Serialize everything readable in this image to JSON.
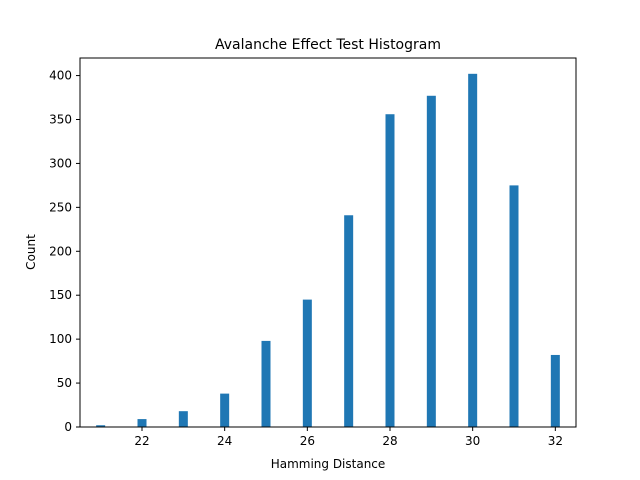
{
  "chart_data": {
    "type": "bar",
    "title": "Avalanche Effect Test Histogram",
    "xlabel": "Hamming Distance",
    "ylabel": "Count",
    "x": [
      21,
      22,
      23,
      24,
      25,
      26,
      27,
      28,
      29,
      30,
      31,
      32
    ],
    "values": [
      2,
      9,
      18,
      38,
      98,
      145,
      241,
      356,
      377,
      402,
      275,
      82
    ],
    "xlim": [
      20.5,
      32.5
    ],
    "ylim": [
      0,
      420
    ],
    "xticks": [
      22,
      24,
      26,
      28,
      30,
      32
    ],
    "xtick_labels": [
      "22",
      "24",
      "26",
      "28",
      "30",
      "32"
    ],
    "yticks": [
      0,
      50,
      100,
      150,
      200,
      250,
      300,
      350,
      400
    ],
    "ytick_labels": [
      "0",
      "50",
      "100",
      "150",
      "200",
      "250",
      "300",
      "350",
      "400"
    ],
    "grid": false,
    "bar_color": "#1f77b4"
  }
}
